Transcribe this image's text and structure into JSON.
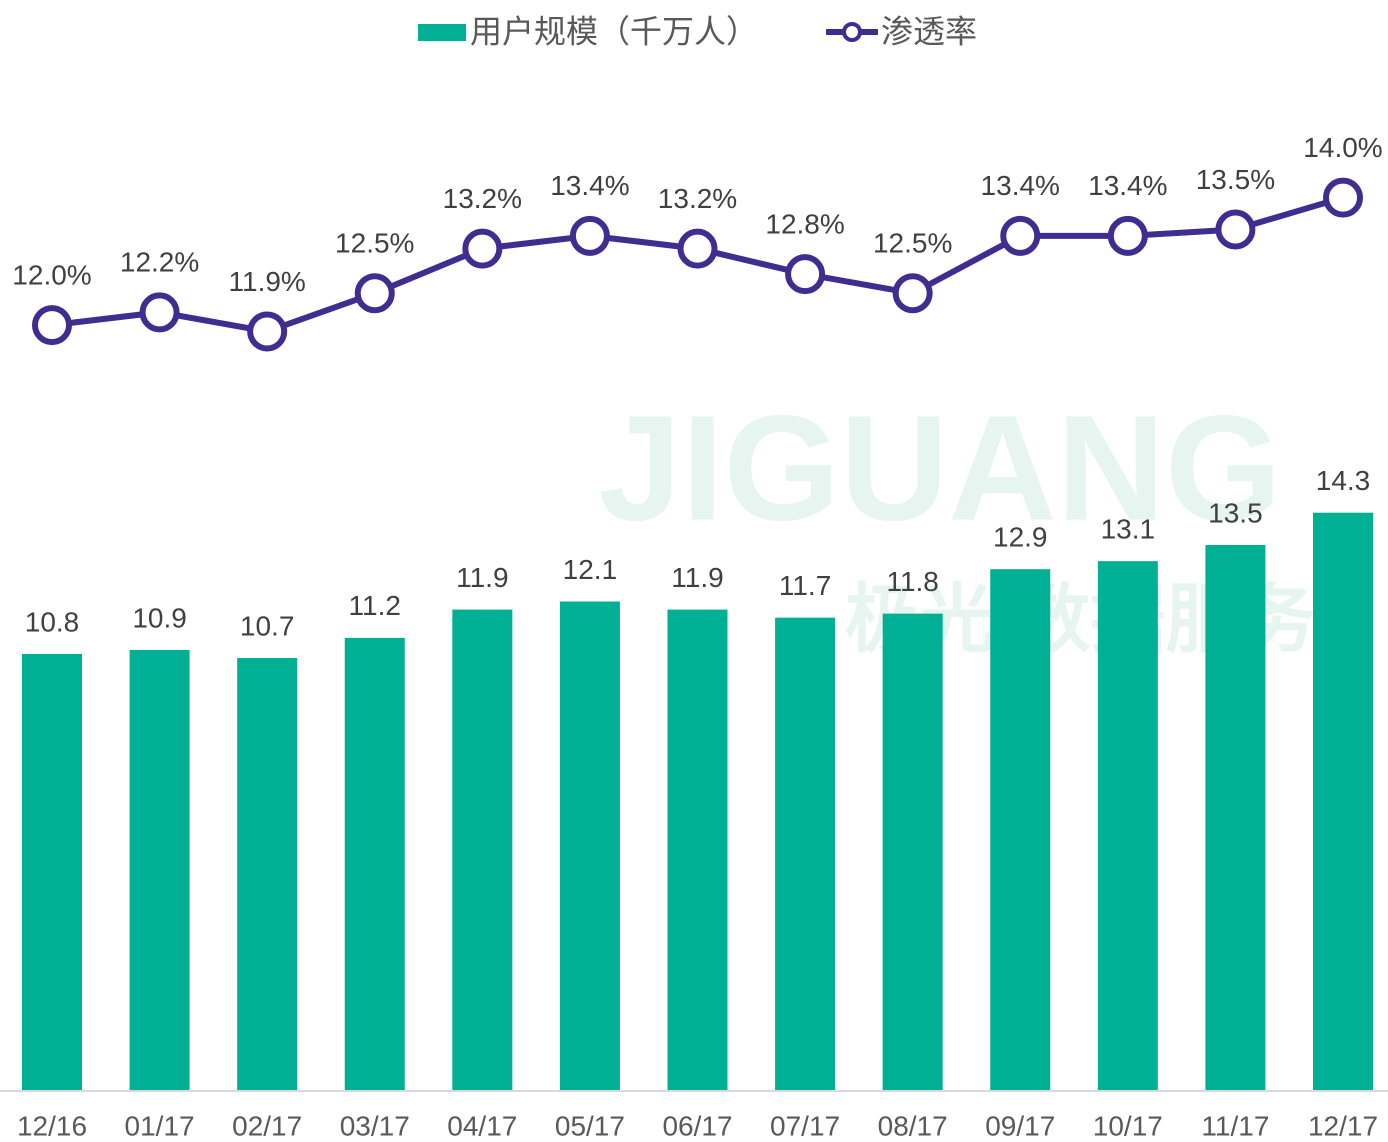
{
  "chart_data": {
    "type": "bar-line",
    "categories": [
      "12/16",
      "01/17",
      "02/17",
      "03/17",
      "04/17",
      "05/17",
      "06/17",
      "07/17",
      "08/17",
      "09/17",
      "10/17",
      "11/17",
      "12/17"
    ],
    "series": [
      {
        "name": "用户规模（千万人）",
        "type": "bar",
        "color": "#00b095",
        "axis": "y",
        "values": [
          10.8,
          10.9,
          10.7,
          11.2,
          11.9,
          12.1,
          11.9,
          11.7,
          11.8,
          12.9,
          13.1,
          13.5,
          14.3
        ]
      },
      {
        "name": "渗透率",
        "type": "line",
        "color": "#3f2d8f",
        "axis": "y2",
        "values": [
          12.0,
          12.2,
          11.9,
          12.5,
          13.2,
          13.4,
          13.2,
          12.8,
          12.5,
          13.4,
          13.4,
          13.5,
          14.0
        ],
        "value_labels": [
          "12.0%",
          "12.2%",
          "11.9%",
          "12.5%",
          "13.2%",
          "13.4%",
          "13.2%",
          "12.8%",
          "12.5%",
          "13.4%",
          "13.4%",
          "13.5%",
          "14.0%"
        ]
      }
    ],
    "ylim": [
      0,
      27
    ],
    "y2lim": [
      0,
      17.1
    ],
    "legend": "top",
    "watermark": [
      "JIGUANG",
      "极光 数据服务"
    ]
  }
}
